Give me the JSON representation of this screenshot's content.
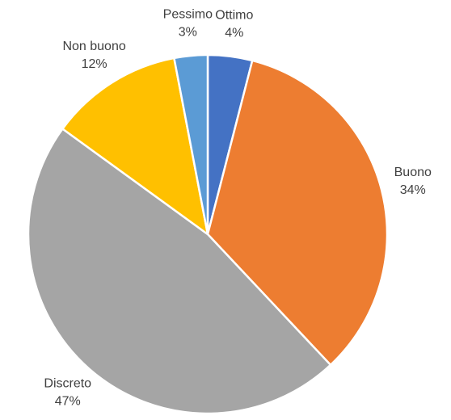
{
  "chart_data": {
    "type": "pie",
    "categories": [
      "Ottimo",
      "Buono",
      "Discreto",
      "Non buono",
      "Pessimo"
    ],
    "values": [
      4,
      34,
      47,
      12,
      3
    ],
    "value_labels": [
      "4%",
      "34%",
      "47%",
      "12%",
      "3%"
    ],
    "colors": [
      "#4472c4",
      "#ed7d31",
      "#a5a5a5",
      "#ffc000",
      "#5b9bd5"
    ]
  }
}
